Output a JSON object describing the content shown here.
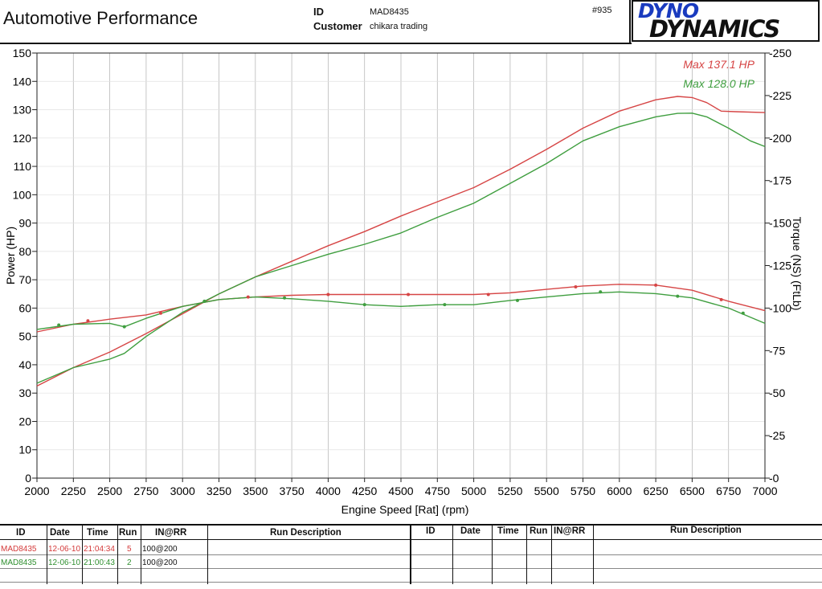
{
  "header": {
    "title": "Automotive Performance",
    "id_label": "ID",
    "id_value": "MAD8435",
    "customer_label": "Customer",
    "customer_value": "chikara trading",
    "run_number": "#935",
    "logo_top": "DYNO",
    "logo_bottom": "DYNAMICS"
  },
  "colors": {
    "red": "#d64545",
    "green": "#3f9e3f"
  },
  "chart_data": {
    "type": "line",
    "xlabel": "Engine Speed [Rat] (rpm)",
    "ylabel_left": "Power (HP)",
    "ylabel_right": "Torque (NS) (FtLb)",
    "xlim": [
      2000,
      7000
    ],
    "ylim_left": [
      0,
      150
    ],
    "ylim_right": [
      0,
      250
    ],
    "x_ticks": [
      2000,
      2250,
      2500,
      2750,
      3000,
      3250,
      3500,
      3750,
      4000,
      4250,
      4500,
      4750,
      5000,
      5250,
      5500,
      5750,
      6000,
      6250,
      6500,
      6750,
      7000
    ],
    "y_ticks_left": [
      0,
      10,
      20,
      30,
      40,
      50,
      60,
      70,
      80,
      90,
      100,
      110,
      120,
      130,
      140,
      150
    ],
    "y_ticks_right": [
      0,
      25,
      50,
      75,
      100,
      125,
      150,
      175,
      200,
      225,
      250
    ],
    "legend": [
      {
        "text": "Max 137.1 HP",
        "color": "#d64545"
      },
      {
        "text": "Max 128.0 HP",
        "color": "#3f9e3f"
      }
    ],
    "series": [
      {
        "name": "Power run 5",
        "axis": "left",
        "color": "#d64545",
        "x": [
          2000,
          2250,
          2500,
          2750,
          3000,
          3250,
          3500,
          3750,
          4000,
          4250,
          4500,
          4750,
          5000,
          5250,
          5500,
          5750,
          6000,
          6250,
          6400,
          6500,
          6600,
          6700,
          6800,
          7000
        ],
        "y": [
          32.5,
          39,
          44.5,
          51,
          58,
          65,
          71,
          76.5,
          82,
          87,
          92.5,
          97.5,
          102.5,
          109,
          116,
          123.5,
          129.5,
          133.5,
          134.7,
          134.3,
          132.5,
          129.5,
          129.3,
          129
        ]
      },
      {
        "name": "Power run 2",
        "axis": "left",
        "color": "#3f9e3f",
        "x": [
          2000,
          2250,
          2500,
          2600,
          2750,
          3000,
          3250,
          3500,
          3750,
          4000,
          4250,
          4500,
          4750,
          5000,
          5250,
          5500,
          5750,
          6000,
          6250,
          6400,
          6500,
          6600,
          6750,
          6900,
          7000
        ],
        "y": [
          33.5,
          39,
          42,
          44,
          50,
          58.5,
          65,
          71,
          75,
          79,
          82.5,
          86.5,
          92,
          97,
          104,
          111,
          119,
          124,
          127.5,
          128.7,
          128.8,
          127.5,
          123.5,
          119,
          117
        ]
      },
      {
        "name": "Torque run 5",
        "axis": "right",
        "color": "#d64545",
        "x": [
          2000,
          2250,
          2500,
          2750,
          3000,
          3250,
          3500,
          3750,
          4000,
          4250,
          4500,
          4750,
          5000,
          5250,
          5500,
          5750,
          6000,
          6250,
          6500,
          6750,
          7000
        ],
        "y": [
          86,
          90.5,
          93.5,
          96,
          101,
          105,
          106.5,
          107.5,
          108,
          108,
          108,
          108,
          108,
          109,
          111,
          113,
          114,
          113.5,
          110.5,
          104,
          98.5
        ]
      },
      {
        "name": "Torque run 2",
        "axis": "right",
        "color": "#3f9e3f",
        "x": [
          2000,
          2250,
          2500,
          2600,
          2750,
          3000,
          3250,
          3500,
          3750,
          4000,
          4250,
          4500,
          4750,
          5000,
          5250,
          5500,
          5750,
          6000,
          6250,
          6500,
          6750,
          7000
        ],
        "y": [
          87.5,
          90.5,
          91,
          89,
          94,
          101,
          105,
          106.5,
          105.5,
          104,
          102,
          101,
          102,
          102,
          104.5,
          106.5,
          108.5,
          109.5,
          108.5,
          106,
          100,
          91
        ]
      }
    ],
    "markers": [
      {
        "color": "#d64545",
        "axis": "right",
        "x": [
          2350,
          2850,
          3450,
          4000,
          4550,
          5100,
          5700,
          6250,
          6700
        ],
        "y": [
          92.5,
          97,
          106.5,
          108,
          108,
          108,
          112.5,
          113.5,
          105
        ]
      },
      {
        "color": "#3f9e3f",
        "axis": "right",
        "x": [
          2150,
          2600,
          3150,
          3700,
          4250,
          4800,
          5300,
          5870,
          6400,
          6850
        ],
        "y": [
          90,
          89,
          104,
          106,
          102,
          102,
          104.5,
          109.5,
          107,
          97
        ]
      }
    ]
  },
  "table": {
    "headers": [
      "ID",
      "Date",
      "Time",
      "Run",
      "IN@RR",
      "Run Description",
      "ID",
      "Date",
      "Time",
      "Run",
      "IN@RR",
      "Run Description"
    ],
    "rows": [
      {
        "id": "MAD8435",
        "date": "12-06-10",
        "time": "21:04:34",
        "run": "5",
        "inrr": "100@200",
        "color": "#d64545"
      },
      {
        "id": "MAD8435",
        "date": "12-06-10",
        "time": "21:00:43",
        "run": "2",
        "inrr": "100@200",
        "color": "#3f9e3f"
      }
    ]
  }
}
